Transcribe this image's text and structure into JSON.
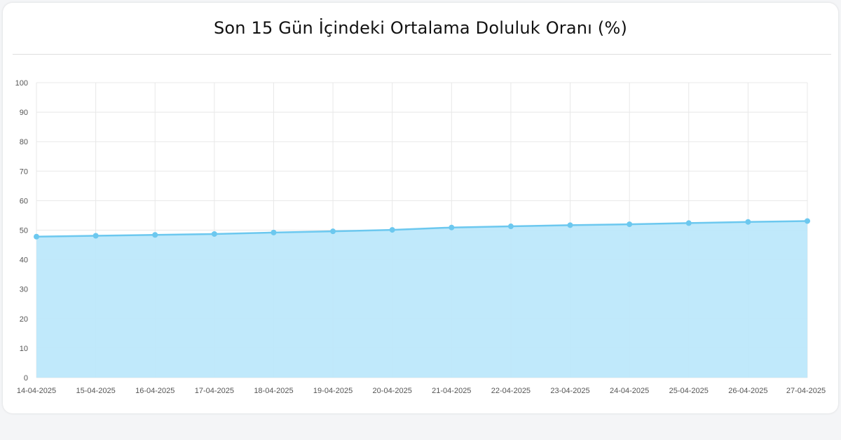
{
  "card": {
    "title": "Son 15 Gün İçindeki Ortalama Doluluk Oranı (%)"
  },
  "chart_data": {
    "type": "area",
    "title": "Son 15 Gün İçindeki Ortalama Doluluk Oranı (%)",
    "xlabel": "",
    "ylabel": "",
    "categories": [
      "14-04-2025",
      "15-04-2025",
      "16-04-2025",
      "17-04-2025",
      "18-04-2025",
      "19-04-2025",
      "20-04-2025",
      "21-04-2025",
      "22-04-2025",
      "23-04-2025",
      "24-04-2025",
      "25-04-2025",
      "26-04-2025",
      "27-04-2025"
    ],
    "values": [
      47.8,
      48.1,
      48.4,
      48.7,
      49.2,
      49.6,
      50.1,
      50.9,
      51.3,
      51.7,
      52.0,
      52.4,
      52.8,
      53.1
    ],
    "ylim": [
      0,
      100
    ],
    "yticks": [
      0,
      10,
      20,
      30,
      40,
      50,
      60,
      70,
      80,
      90,
      100
    ],
    "grid": true,
    "colors": {
      "line": "#6cc8ef",
      "fill": "#bde8fb",
      "grid": "#e8e8e8"
    }
  }
}
